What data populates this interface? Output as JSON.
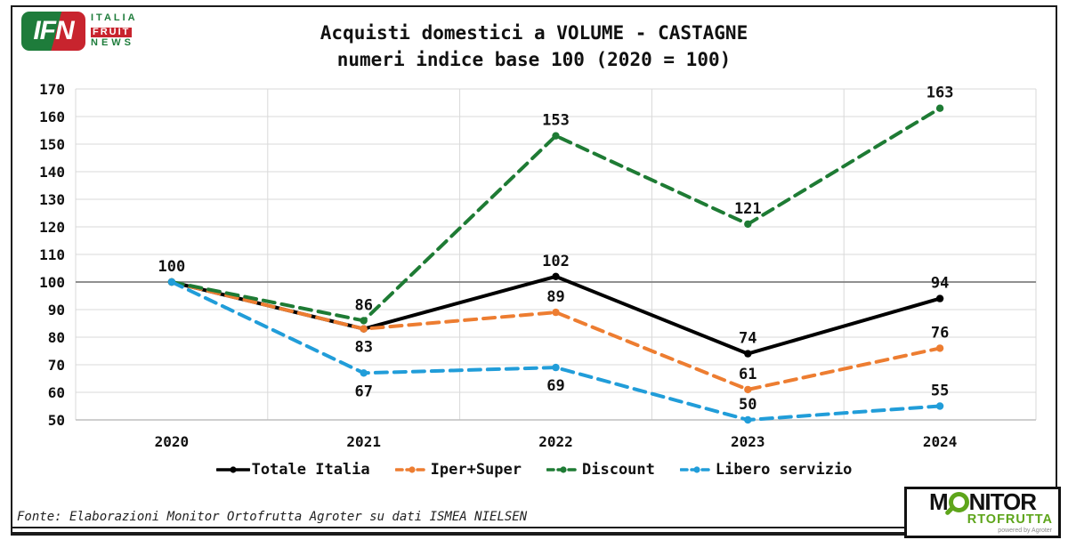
{
  "header": {
    "title_line1": "Acquisti domestici a VOLUME - CASTAGNE",
    "title_line2": "numeri indice base 100 (2020 = 100)"
  },
  "ifn_logo": {
    "abbr": "IFN",
    "word1": "ITALIA",
    "word2": "FRUIT",
    "word3": "NEWS",
    "green": "#1E7C3B",
    "red": "#C8242E"
  },
  "monitor_logo": {
    "part1": "M",
    "part2": "NITOR",
    "line2": "RTOFRUTTA",
    "powered": "powered by Agroter",
    "green": "#5EA51B"
  },
  "source": {
    "text": "Fonte: Elaborazioni Monitor Ortofrutta Agroter su dati ISMEA NIELSEN"
  },
  "chart_data": {
    "type": "line",
    "title": "Acquisti domestici a VOLUME - CASTAGNE",
    "subtitle": "numeri indice base 100 (2020 = 100)",
    "categories": [
      "2020",
      "2021",
      "2022",
      "2023",
      "2024"
    ],
    "ylim": [
      50,
      170
    ],
    "ytick_step": 10,
    "ref_line": 100,
    "grid": true,
    "legend_position": "bottom",
    "grid_color": "#D9D9D9",
    "ref_line_color": "#808080",
    "axis_color": "#BFBFBF",
    "series": [
      {
        "name": "Totale Italia",
        "color": "#000000",
        "dash": "solid",
        "values": [
          100,
          83,
          102,
          74,
          94
        ],
        "show_label": [
          true,
          true,
          true,
          true,
          true
        ],
        "label_side": [
          "above",
          "below",
          "above",
          "above",
          "above"
        ]
      },
      {
        "name": "Iper+Super",
        "color": "#ED7D31",
        "dash": "dashed",
        "values": [
          100,
          83,
          89,
          61,
          76
        ],
        "show_label": [
          false,
          false,
          true,
          true,
          true
        ],
        "label_side": [
          "above",
          "below",
          "above",
          "above",
          "above"
        ]
      },
      {
        "name": "Discount",
        "color": "#1E7B34",
        "dash": "dashed",
        "values": [
          100,
          86,
          153,
          121,
          163
        ],
        "show_label": [
          false,
          true,
          true,
          true,
          true
        ],
        "label_side": [
          "above",
          "above",
          "above",
          "above",
          "above"
        ]
      },
      {
        "name": "Libero servizio",
        "color": "#219DD9",
        "dash": "dashed",
        "values": [
          100,
          67,
          69,
          50,
          55
        ],
        "show_label": [
          false,
          true,
          true,
          true,
          true
        ],
        "label_side": [
          "above",
          "below",
          "below",
          "above",
          "above"
        ]
      }
    ]
  }
}
